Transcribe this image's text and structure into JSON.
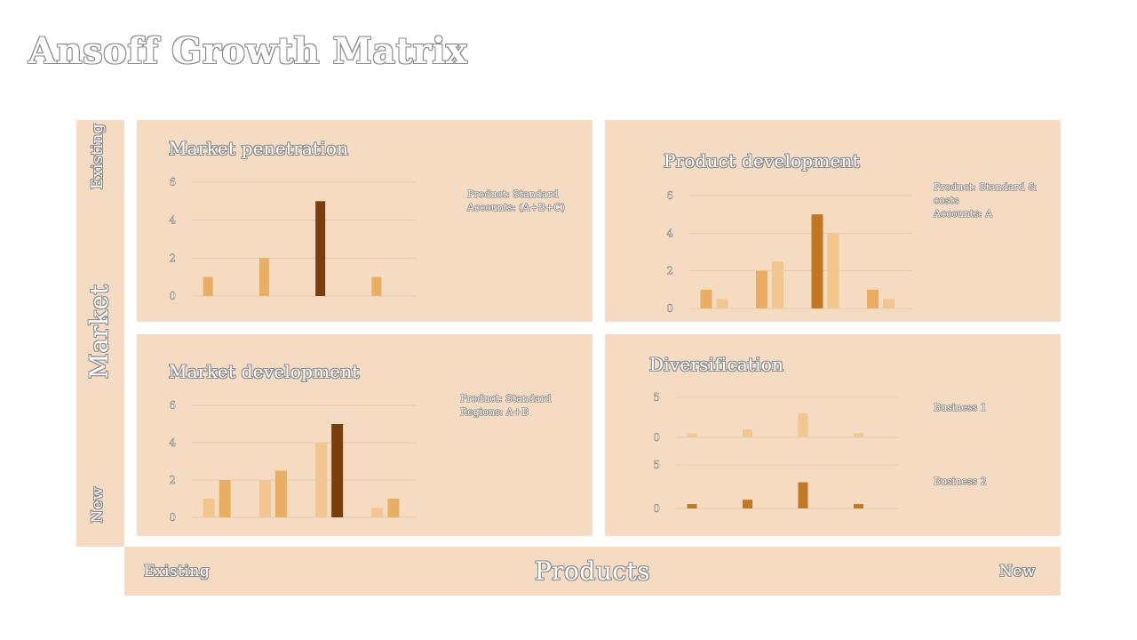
{
  "title": "Ansoff Growth Matrix",
  "axes": {
    "market_label": "Market",
    "market_top": "Existing",
    "market_bottom": "New",
    "products_label": "Products",
    "products_left": "Existing",
    "products_right": "New"
  },
  "colors": {
    "panel_bg": "#f5dbc2",
    "light": "#f1c68f",
    "medium": "#e9ae62",
    "dark": "#c27822",
    "darkest": "#7a3d0c",
    "grid": "#e2cbb4"
  },
  "quadrants": {
    "market_penetration": {
      "title": "Market penetration",
      "legend": [
        "Product: Standard",
        "Accounts: (A+B+C)"
      ]
    },
    "product_development": {
      "title": "Product development",
      "legend": [
        "Product: Standard  &",
        "costs",
        "Accounts: A"
      ]
    },
    "market_development": {
      "title": "Market development",
      "legend": [
        "Product: Standard",
        "Regions: A+B"
      ]
    },
    "diversification": {
      "title": "Diversification",
      "legend": [
        "Business 1",
        "Business 2"
      ]
    }
  },
  "chart_data": [
    {
      "id": "market_penetration",
      "type": "bar",
      "title": "Market penetration",
      "ylim": [
        0,
        6
      ],
      "yticks": [
        0,
        2,
        4,
        6
      ],
      "grid": true,
      "groups": 4,
      "series": [
        {
          "values": [
            1,
            2,
            5,
            1
          ],
          "colors": [
            "#e9ae62",
            "#e9ae62",
            "#7a3d0c",
            "#e9ae62"
          ]
        }
      ]
    },
    {
      "id": "product_development",
      "type": "bar",
      "title": "Product development",
      "ylim": [
        0,
        6
      ],
      "yticks": [
        0,
        2,
        4,
        6
      ],
      "grid": true,
      "groups": 4,
      "series": [
        {
          "values": [
            1,
            2,
            5,
            1
          ],
          "colors": [
            "#e9ae62",
            "#e9ae62",
            "#c27822",
            "#e9ae62"
          ]
        },
        {
          "values": [
            0.5,
            2.5,
            4,
            0.5
          ],
          "colors": [
            "#f1c68f",
            "#f1c68f",
            "#f1c68f",
            "#f1c68f"
          ]
        }
      ]
    },
    {
      "id": "market_development",
      "type": "bar",
      "title": "Market development",
      "ylim": [
        0,
        6
      ],
      "yticks": [
        0,
        2,
        4,
        6
      ],
      "grid": true,
      "groups": 4,
      "series": [
        {
          "values": [
            1,
            2,
            4,
            0.5
          ],
          "colors": [
            "#f1c68f",
            "#f1c68f",
            "#f1c68f",
            "#f1c68f"
          ]
        },
        {
          "values": [
            2,
            2.5,
            5,
            1
          ],
          "colors": [
            "#e9ae62",
            "#e9ae62",
            "#7a3d0c",
            "#e9ae62"
          ]
        }
      ]
    },
    {
      "id": "diversification_1",
      "type": "bar",
      "title": "Business 1",
      "ylim": [
        0,
        5
      ],
      "yticks": [
        0,
        5
      ],
      "grid": true,
      "groups": 4,
      "series": [
        {
          "values": [
            0.5,
            1,
            3,
            0.5
          ],
          "colors": [
            "#f1c68f",
            "#f1c68f",
            "#f1c68f",
            "#f1c68f"
          ]
        }
      ]
    },
    {
      "id": "diversification_2",
      "type": "bar",
      "title": "Business 2",
      "ylim": [
        0,
        5
      ],
      "yticks": [
        0,
        5
      ],
      "grid": true,
      "groups": 4,
      "series": [
        {
          "values": [
            0.5,
            1,
            3,
            0.5
          ],
          "colors": [
            "#c27822",
            "#c27822",
            "#c27822",
            "#c27822"
          ]
        }
      ]
    }
  ]
}
